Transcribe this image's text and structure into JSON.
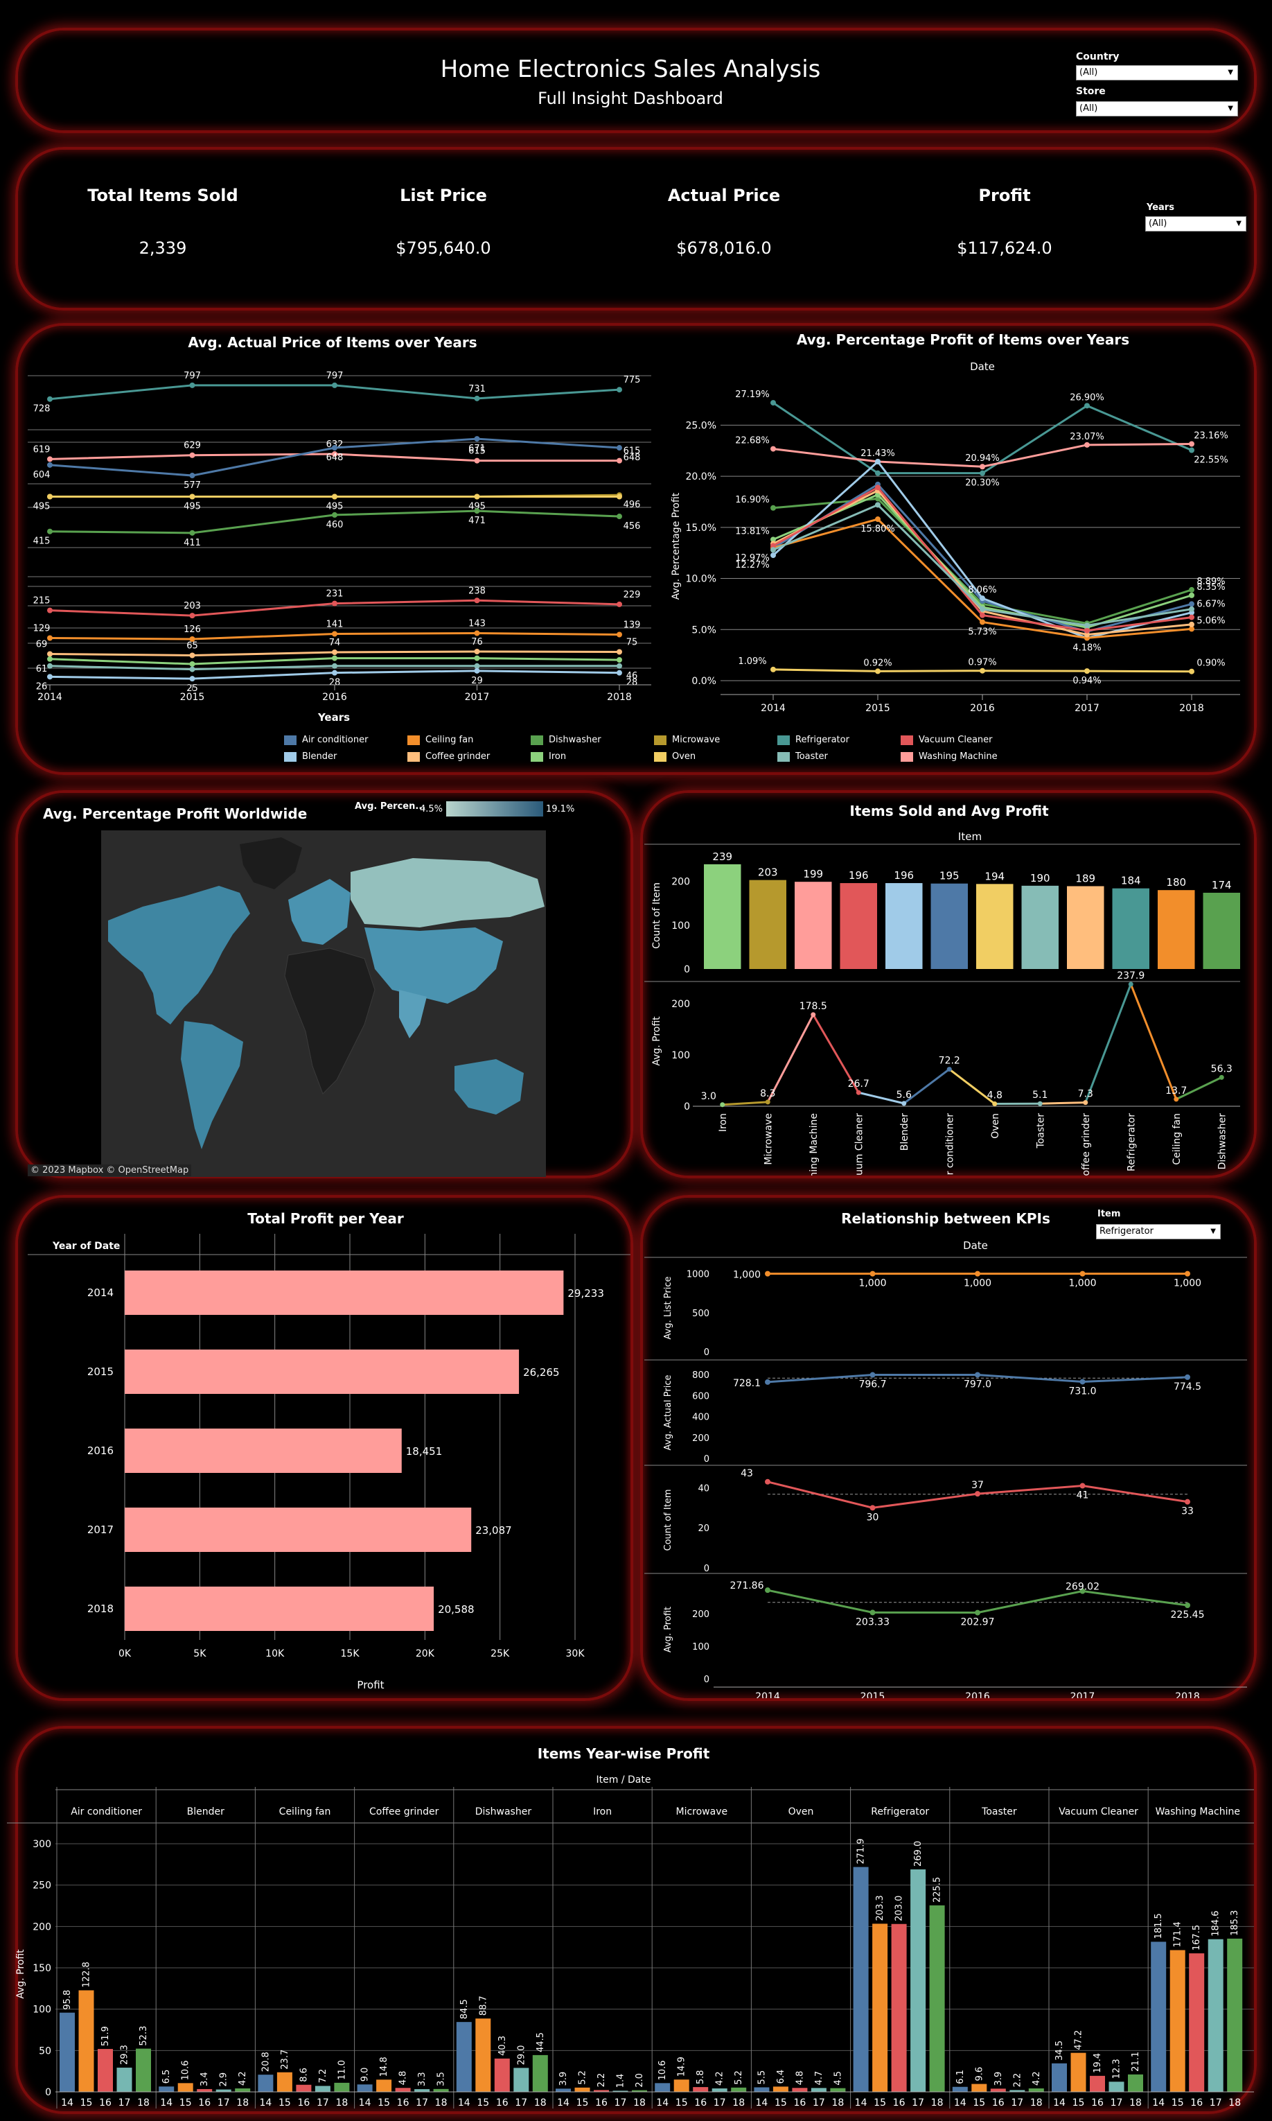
{
  "header": {
    "title": "Home Electronics Sales Analysis",
    "subtitle": "Full Insight Dashboard",
    "country_label": "Country",
    "country_value": "(All)",
    "store_label": "Store",
    "store_value": "(All)"
  },
  "kpis": {
    "years_label": "Years",
    "years_value": "(All)",
    "items": [
      {
        "label": "Total Items Sold",
        "value": "2,339"
      },
      {
        "label": "List Price",
        "value": "$795,640.0"
      },
      {
        "label": "Actual Price",
        "value": "$678,016.0"
      },
      {
        "label": "Profit",
        "value": "$117,624.0"
      }
    ]
  },
  "colors": {
    "Air conditioner": "#4e79a7",
    "Blender": "#a0cbe8",
    "Ceiling fan": "#f28e2b",
    "Coffee grinder": "#ffbe7d",
    "Dishwasher": "#59a14f",
    "Iron": "#8cd17d",
    "Microwave": "#b6992d",
    "Oven": "#f1ce63",
    "Refrigerator": "#499894",
    "Toaster": "#86bcb6",
    "Vacuum Cleaner": "#e15759",
    "Washing Machine": "#ff9d9a",
    "panel_border": "#7a0b0b"
  },
  "legend": [
    "Air conditioner",
    "Ceiling fan",
    "Dishwasher",
    "Microwave",
    "Refrigerator",
    "Vacuum Cleaner",
    "Blender",
    "Coffee grinder",
    "Iron",
    "Oven",
    "Toaster",
    "Washing Machine"
  ],
  "chart_data": [
    {
      "id": "avg_actual_price",
      "type": "line",
      "title": "Avg. Actual Price of Items over Years",
      "xlabel": "Years",
      "x": [
        "2014",
        "2015",
        "2016",
        "2017",
        "2018"
      ],
      "series": [
        {
          "name": "Refrigerator",
          "values": [
            728,
            797,
            797,
            731,
            775
          ],
          "labels": [
            "728",
            "797",
            "797",
            "731",
            "775"
          ]
        },
        {
          "name": "Washing Machine",
          "values": [
            619,
            629,
            632,
            615,
            615
          ],
          "labels": [
            "619",
            "629",
            "632",
            "615",
            "615"
          ]
        },
        {
          "name": "Air conditioner",
          "values": [
            604,
            577,
            648,
            671,
            648
          ],
          "labels": [
            "604",
            "577",
            "648",
            "671",
            "648"
          ]
        },
        {
          "name": "Microwave",
          "values": [
            495,
            495,
            495,
            495,
            496
          ],
          "labels": [
            "495",
            "495",
            "495",
            "495",
            "496"
          ]
        },
        {
          "name": "Oven",
          "values": [
            495,
            495,
            495,
            495,
            495
          ],
          "labels": [
            "",
            "",
            "",
            "",
            ""
          ]
        },
        {
          "name": "Dishwasher",
          "values": [
            415,
            411,
            460,
            471,
            456
          ],
          "labels": [
            "415",
            "411",
            "460",
            "471",
            "456"
          ]
        },
        {
          "name": "Vacuum Cleaner",
          "values": [
            215,
            203,
            231,
            238,
            229
          ],
          "labels": [
            "215",
            "203",
            "231",
            "238",
            "229"
          ]
        },
        {
          "name": "Ceiling fan",
          "values": [
            129,
            126,
            141,
            143,
            139
          ],
          "labels": [
            "129",
            "126",
            "141",
            "143",
            "139"
          ]
        },
        {
          "name": "Coffee grinder",
          "values": [
            69,
            65,
            74,
            76,
            75
          ],
          "labels": [
            "69",
            "65",
            "74",
            "76",
            "75"
          ]
        },
        {
          "name": "Iron",
          "values": [
            61,
            55,
            62,
            62,
            60
          ],
          "labels": [
            "61",
            "",
            "",
            "",
            ""
          ]
        },
        {
          "name": "Toaster",
          "values": [
            46,
            42,
            46,
            46,
            46
          ],
          "labels": [
            "",
            "",
            "",
            "",
            "46"
          ]
        },
        {
          "name": "Blender",
          "values": [
            26,
            25,
            28,
            29,
            28
          ],
          "labels": [
            "26",
            "25",
            "28",
            "29",
            "28"
          ]
        }
      ]
    },
    {
      "id": "avg_pct_profit",
      "type": "line",
      "title": "Avg. Percentage Profit of Items over Years",
      "xlabel": "Date",
      "ylabel": "Avg. Percentage Profit",
      "x": [
        "2014",
        "2015",
        "2016",
        "2017",
        "2018"
      ],
      "ylim": [
        0,
        28
      ],
      "yticks": [
        "0.0%",
        "5.0%",
        "10.0%",
        "15.0%",
        "20.0%",
        "25.0%"
      ],
      "series": [
        {
          "name": "Refrigerator",
          "values": [
            27.19,
            20.3,
            20.3,
            26.9,
            22.55
          ]
        },
        {
          "name": "Washing Machine",
          "values": [
            22.68,
            21.43,
            20.94,
            23.07,
            23.16
          ]
        },
        {
          "name": "Dishwasher",
          "values": [
            16.9,
            17.8,
            7.5,
            5.6,
            8.89
          ]
        },
        {
          "name": "Iron",
          "values": [
            13.81,
            18.2,
            7.2,
            5.2,
            8.35
          ]
        },
        {
          "name": "Air conditioner",
          "values": [
            12.97,
            19.2,
            7.8,
            4.8,
            7.5
          ]
        },
        {
          "name": "Blender",
          "values": [
            12.27,
            21.43,
            8.06,
            4.18,
            6.67
          ]
        },
        {
          "name": "Ceiling fan",
          "values": [
            13.0,
            15.8,
            5.73,
            4.18,
            5.06
          ]
        },
        {
          "name": "Coffee grinder",
          "values": [
            13.4,
            18.6,
            6.8,
            4.5,
            5.5
          ]
        },
        {
          "name": "Vacuum Cleaner",
          "values": [
            13.2,
            18.9,
            6.4,
            4.9,
            6.2
          ]
        },
        {
          "name": "Toaster",
          "values": [
            12.8,
            17.2,
            7.0,
            5.4,
            7.0
          ]
        },
        {
          "name": "Oven",
          "values": [
            1.09,
            0.92,
            0.97,
            0.94,
            0.9
          ]
        }
      ],
      "labels": [
        {
          "t": "27.19%",
          "s": 0,
          "i": 0
        },
        {
          "t": "22.68%",
          "s": 1,
          "i": 0
        },
        {
          "t": "16.90%",
          "s": 2,
          "i": 0
        },
        {
          "t": "13.81%",
          "s": 3,
          "i": 0
        },
        {
          "t": "12.97%",
          "s": 4,
          "i": 0
        },
        {
          "t": "12.27%",
          "s": 5,
          "i": 0
        },
        {
          "t": "1.09%",
          "s": 10,
          "i": 0
        },
        {
          "t": "21.43%",
          "s": 1,
          "i": 1
        },
        {
          "t": "15.80%",
          "s": 6,
          "i": 1
        },
        {
          "t": "0.92%",
          "s": 10,
          "i": 1
        },
        {
          "t": "20.94%",
          "s": 1,
          "i": 2
        },
        {
          "t": "20.30%",
          "s": 0,
          "i": 2
        },
        {
          "t": "8.06%",
          "s": 5,
          "i": 2
        },
        {
          "t": "5.73%",
          "s": 6,
          "i": 2
        },
        {
          "t": "0.97%",
          "s": 10,
          "i": 2
        },
        {
          "t": "26.90%",
          "s": 0,
          "i": 3
        },
        {
          "t": "23.07%",
          "s": 1,
          "i": 3
        },
        {
          "t": "4.18%",
          "s": 5,
          "i": 3
        },
        {
          "t": "0.94%",
          "s": 10,
          "i": 3
        },
        {
          "t": "23.16%",
          "s": 1,
          "i": 4
        },
        {
          "t": "22.55%",
          "s": 0,
          "i": 4
        },
        {
          "t": "8.89%",
          "s": 2,
          "i": 4
        },
        {
          "t": "8.35%",
          "s": 3,
          "i": 4
        },
        {
          "t": "6.67%",
          "s": 5,
          "i": 4
        },
        {
          "t": "5.06%",
          "s": 6,
          "i": 4
        },
        {
          "t": "0.90%",
          "s": 10,
          "i": 4
        }
      ]
    },
    {
      "id": "items_sold",
      "type": "bar",
      "title": "Items Sold and Avg Profit",
      "xlabel": "Item",
      "ylabel": "Count of Item",
      "ylim": [
        0,
        250
      ],
      "yticks": [
        0,
        100,
        200
      ],
      "categories": [
        "Iron",
        "Microwave",
        "Washing Machine",
        "Vacuum Cleaner",
        "Blender",
        "Air conditioner",
        "Oven",
        "Toaster",
        "Coffee grinder",
        "Refrigerator",
        "Ceiling fan",
        "Dishwasher"
      ],
      "values": [
        239,
        203,
        199,
        196,
        196,
        195,
        194,
        190,
        189,
        184,
        180,
        174
      ]
    },
    {
      "id": "avg_profit_item",
      "type": "line",
      "ylabel": "Avg. Profit",
      "ylim": [
        0,
        250
      ],
      "yticks": [
        0,
        100,
        200
      ],
      "categories": [
        "Iron",
        "Microwave",
        "Washing Machine",
        "Vacuum Cleaner",
        "Blender",
        "Air conditioner",
        "Oven",
        "Toaster",
        "Coffee grinder",
        "Refrigerator",
        "Ceiling fan",
        "Dishwasher"
      ],
      "tick_labels": [
        "Iron",
        "Microwave",
        "Washing Machine",
        "Vacuum Cleaner",
        "Blender",
        "Air conditioner",
        "Oven",
        "Toaster",
        "Coffee grinder",
        "Refrigerator",
        "Ceiling fan",
        "Dishwasher"
      ],
      "values": [
        3.0,
        8.3,
        178.5,
        26.7,
        5.6,
        72.2,
        4.8,
        5.1,
        7.3,
        237.9,
        13.7,
        56.3
      ],
      "labels": [
        "3.0",
        "8.3",
        "178.5",
        "26.7",
        "5.6",
        "72.2",
        "4.8",
        "5.1",
        "7.3",
        "237.9",
        "13.7",
        "56.3"
      ]
    },
    {
      "id": "total_profit_year",
      "type": "bar",
      "title": "Total Profit per Year",
      "ylabel": "Year of Date",
      "xlabel": "Profit",
      "xlim": [
        0,
        30000
      ],
      "xticks": [
        "0K",
        "5K",
        "10K",
        "15K",
        "20K",
        "25K",
        "30K"
      ],
      "categories": [
        "2014",
        "2015",
        "2016",
        "2017",
        "2018"
      ],
      "values": [
        29233,
        26265,
        18451,
        23087,
        20588
      ],
      "labels": [
        "29,233",
        "26,265",
        "18,451",
        "23,087",
        "20,588"
      ]
    },
    {
      "id": "kpi_relationship",
      "type": "line",
      "title": "Relationship between KPIs",
      "xlabel": "Date",
      "x": [
        "2014",
        "2015",
        "2016",
        "2017",
        "2018"
      ],
      "item_label": "Item",
      "item_value": "Refrigerator",
      "panels": [
        {
          "ylabel": "Avg. List Price",
          "ylim": [
            0,
            1050
          ],
          "yticks": [
            "0",
            "500",
            "1000"
          ],
          "values": [
            1000,
            1000,
            1000,
            1000,
            1000
          ],
          "labels": [
            "1,000",
            "1,000",
            "1,000",
            "1,000",
            "1,000"
          ]
        },
        {
          "ylabel": "Avg. Actual Price",
          "ylim": [
            0,
            820
          ],
          "yticks": [
            "0",
            "200",
            "400",
            "600",
            "800"
          ],
          "values": [
            728.1,
            796.7,
            797.0,
            731.0,
            774.5
          ],
          "labels": [
            "728.1",
            "796.7",
            "797.0",
            "731.0",
            "774.5"
          ]
        },
        {
          "ylabel": "Count of Item",
          "ylim": [
            0,
            45
          ],
          "yticks": [
            "0",
            "20",
            "40"
          ],
          "values": [
            43,
            30,
            37,
            41,
            33
          ],
          "labels": [
            "43",
            "30",
            "37",
            "41",
            "33"
          ]
        },
        {
          "ylabel": "Avg. Profit",
          "ylim": [
            0,
            285
          ],
          "yticks": [
            "0",
            "100",
            "200"
          ],
          "values": [
            271.86,
            203.33,
            202.97,
            269.02,
            225.45
          ],
          "labels": [
            "271.86",
            "203.33",
            "202.97",
            "269.02",
            "225.45"
          ]
        }
      ]
    },
    {
      "id": "year_wise_profit",
      "type": "bar",
      "title": "Items Year-wise Profit",
      "xlabel": "Item / Date",
      "ylabel": "Avg. Profit",
      "ylim": [
        0,
        330
      ],
      "yticks": [
        "0",
        "50",
        "100",
        "150",
        "200",
        "250",
        "300"
      ],
      "years": [
        "14",
        "15",
        "16",
        "17",
        "18"
      ],
      "groups": [
        {
          "name": "Air conditioner",
          "values": [
            95.8,
            122.8,
            51.9,
            29.3,
            52.3
          ]
        },
        {
          "name": "Blender",
          "values": [
            6.5,
            10.6,
            3.4,
            2.9,
            4.2
          ]
        },
        {
          "name": "Ceiling fan",
          "values": [
            20.8,
            23.7,
            8.6,
            7.2,
            11.0
          ]
        },
        {
          "name": "Coffee grinder",
          "values": [
            9.0,
            14.8,
            4.8,
            3.3,
            3.5
          ]
        },
        {
          "name": "Dishwasher",
          "values": [
            84.5,
            88.7,
            40.3,
            29.0,
            44.5
          ]
        },
        {
          "name": "Iron",
          "values": [
            3.9,
            5.2,
            2.2,
            1.4,
            2.0
          ]
        },
        {
          "name": "Microwave",
          "values": [
            10.6,
            14.9,
            5.8,
            4.2,
            5.2
          ]
        },
        {
          "name": "Oven",
          "values": [
            5.5,
            6.4,
            4.8,
            4.7,
            4.5
          ]
        },
        {
          "name": "Refrigerator",
          "values": [
            271.9,
            203.3,
            203.0,
            269.0,
            225.5
          ]
        },
        {
          "name": "Toaster",
          "values": [
            6.1,
            9.6,
            3.9,
            2.2,
            4.2
          ]
        },
        {
          "name": "Vacuum Cleaner",
          "values": [
            34.5,
            47.2,
            19.4,
            12.3,
            21.1
          ]
        },
        {
          "name": "Washing Machine",
          "values": [
            181.5,
            171.4,
            167.5,
            184.6,
            185.3
          ]
        }
      ]
    }
  ],
  "map": {
    "title": "Avg. Percentage Profit Worldwide",
    "legend_label": "Avg. Percen...",
    "legend_min": "4.5%",
    "legend_max": "19.1%",
    "attribution": "© 2023 Mapbox  © OpenStreetMap"
  }
}
